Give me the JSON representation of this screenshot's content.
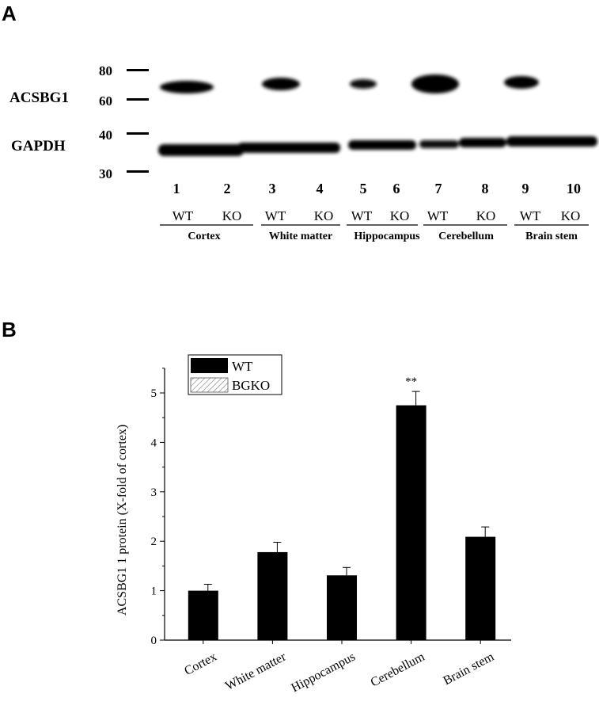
{
  "panel_a": {
    "letter": "A",
    "row_labels": [
      "ACSBG1",
      "GAPDH"
    ],
    "markers": [
      "80",
      "60",
      "40",
      "30"
    ],
    "lanes": [
      "1",
      "2",
      "3",
      "4",
      "5",
      "6",
      "7",
      "8",
      "9",
      "10"
    ],
    "genotypes": [
      "WT",
      "KO",
      "WT",
      "KO",
      "WT",
      "KO",
      "WT",
      "KO",
      "WT",
      "KO"
    ],
    "tissues": [
      "Cortex",
      "White matter",
      "Hippocampus",
      "Cerebellum",
      "Brain stem"
    ]
  },
  "panel_b": {
    "letter": "B",
    "legend": [
      {
        "label": "WT",
        "fill": "#000000"
      },
      {
        "label": "BGKO",
        "fill": "hatch"
      }
    ],
    "significance": "**"
  },
  "chart_data": {
    "type": "bar",
    "categories": [
      "Cortex",
      "White matter",
      "Hippocampus",
      "Cerebellum",
      "Brain stem"
    ],
    "series": [
      {
        "name": "WT",
        "values": [
          1.0,
          1.78,
          1.31,
          4.75,
          2.09
        ],
        "errors": [
          0.13,
          0.2,
          0.16,
          0.28,
          0.2
        ]
      },
      {
        "name": "BGKO",
        "values": [
          0,
          0,
          0,
          0,
          0
        ]
      }
    ],
    "title": "",
    "xlabel": "",
    "ylabel": "ACSBG1 1 protein (X-fold of cortex)",
    "ylim": [
      0,
      5.5
    ],
    "yticks": [
      "0",
      "1",
      "2",
      "3",
      "4",
      "5"
    ],
    "annotations": [
      {
        "category": "Cerebellum",
        "text": "**"
      }
    ],
    "grid": false,
    "legend_position": "top-left"
  }
}
